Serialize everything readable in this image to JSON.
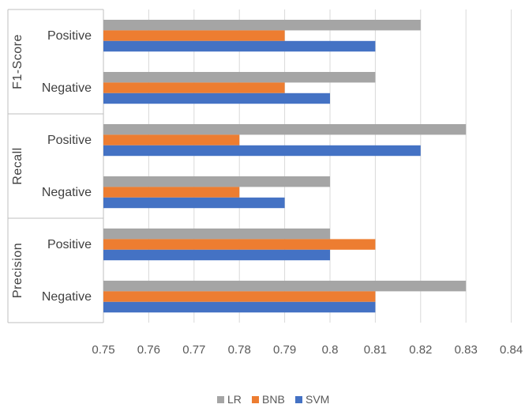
{
  "chart_data": {
    "type": "bar",
    "orientation": "horizontal",
    "groups": [
      {
        "name": "F1-Score",
        "categories": [
          "Positive",
          "Negative"
        ]
      },
      {
        "name": "Recall",
        "categories": [
          "Positive",
          "Negative"
        ]
      },
      {
        "name": "Precision",
        "categories": [
          "Positive",
          "Negative"
        ]
      }
    ],
    "series": [
      {
        "name": "LR",
        "color": "#A5A5A5",
        "values": [
          0.82,
          0.81,
          0.83,
          0.8,
          0.8,
          0.83
        ]
      },
      {
        "name": "BNB",
        "color": "#ED7D31",
        "values": [
          0.79,
          0.79,
          0.78,
          0.78,
          0.81,
          0.81
        ]
      },
      {
        "name": "SVM",
        "color": "#4472C4",
        "values": [
          0.81,
          0.8,
          0.82,
          0.79,
          0.8,
          0.81
        ]
      }
    ],
    "xlim": [
      0.75,
      0.84
    ],
    "xticks": [
      "0.75",
      "0.76",
      "0.77",
      "0.78",
      "0.79",
      "0.8",
      "0.81",
      "0.82",
      "0.83",
      "0.84"
    ],
    "grid": true,
    "legend": "bottom"
  }
}
